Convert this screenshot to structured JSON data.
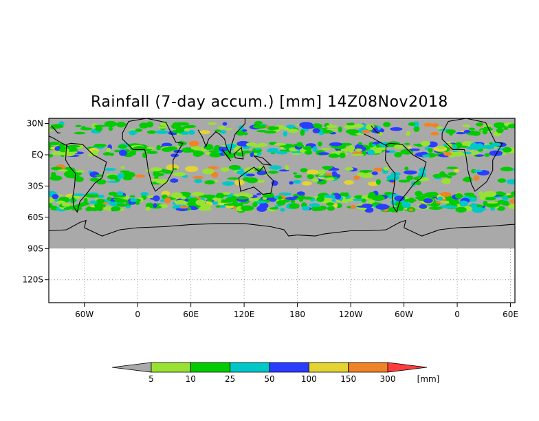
{
  "title": "Rainfall (7-day accum.) [mm] 14Z08Nov2018",
  "map": {
    "lat_ticks": [
      {
        "value": 30,
        "label": "30N"
      },
      {
        "value": 0,
        "label": "EQ"
      },
      {
        "value": -30,
        "label": "30S"
      },
      {
        "value": -60,
        "label": "60S"
      },
      {
        "value": -90,
        "label": "90S"
      },
      {
        "value": -120,
        "label": "120S"
      }
    ],
    "lon_ticks": [
      {
        "value": -60,
        "label": "60W"
      },
      {
        "value": 0,
        "label": "0"
      },
      {
        "value": 60,
        "label": "60E"
      },
      {
        "value": 120,
        "label": "120E"
      },
      {
        "value": 180,
        "label": "180"
      },
      {
        "value": 240,
        "label": "120W"
      },
      {
        "value": 300,
        "label": "60W"
      },
      {
        "value": 360,
        "label": "0"
      },
      {
        "value": 420,
        "label": "60E"
      }
    ],
    "lon_range": [
      -100,
      425
    ],
    "lat_range": [
      -142,
      35
    ],
    "data_lat_range": [
      -90,
      35
    ],
    "background_color": "#a9a9a9"
  },
  "legend": {
    "unit": "[mm]",
    "labels": [
      "5",
      "10",
      "25",
      "50",
      "100",
      "150",
      "300"
    ],
    "colors": [
      "#a9a9a9",
      "#99e233",
      "#00cc00",
      "#00c8c8",
      "#2a3cff",
      "#e3d433",
      "#f08228",
      "#ff3c3c"
    ]
  }
}
